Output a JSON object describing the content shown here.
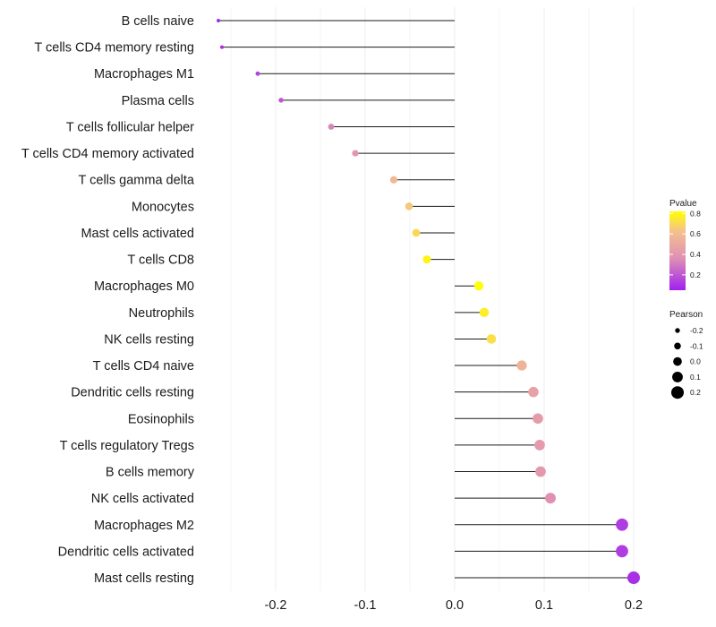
{
  "chart_data": {
    "type": "lollipop",
    "title": "",
    "xlabel": "",
    "ylabel": "",
    "xlim": [
      -0.3,
      0.2
    ],
    "x_ticks": [
      {
        "value": -0.2,
        "label": "-0.2"
      },
      {
        "value": -0.1,
        "label": "-0.1"
      },
      {
        "value": 0.0,
        "label": "0.0"
      },
      {
        "value": 0.1,
        "label": "0.1"
      },
      {
        "value": 0.2,
        "label": "0.2"
      }
    ],
    "grid": true,
    "baseline": 0,
    "categories": [
      {
        "label": "B cells naive",
        "pearson": -0.264,
        "pvalue": 0.08
      },
      {
        "label": "T cells CD4 memory resting",
        "pearson": -0.26,
        "pvalue": 0.09
      },
      {
        "label": "Macrophages M1",
        "pearson": -0.22,
        "pvalue": 0.15
      },
      {
        "label": "Plasma cells",
        "pearson": -0.194,
        "pvalue": 0.2
      },
      {
        "label": "T cells follicular helper",
        "pearson": -0.138,
        "pvalue": 0.33
      },
      {
        "label": "T cells CD4 memory activated",
        "pearson": -0.111,
        "pvalue": 0.4
      },
      {
        "label": "T cells gamma delta",
        "pearson": -0.068,
        "pvalue": 0.58
      },
      {
        "label": "Monocytes",
        "pearson": -0.051,
        "pvalue": 0.65
      },
      {
        "label": "Mast cells activated",
        "pearson": -0.043,
        "pvalue": 0.7
      },
      {
        "label": "T cells CD8",
        "pearson": -0.031,
        "pvalue": 0.79
      },
      {
        "label": "Macrophages M0",
        "pearson": 0.027,
        "pvalue": 0.82
      },
      {
        "label": "Neutrophils",
        "pearson": 0.033,
        "pvalue": 0.77
      },
      {
        "label": "NK cells resting",
        "pearson": 0.041,
        "pvalue": 0.72
      },
      {
        "label": "T cells CD4 naive",
        "pearson": 0.075,
        "pvalue": 0.55
      },
      {
        "label": "Dendritic cells resting",
        "pearson": 0.088,
        "pvalue": 0.46
      },
      {
        "label": "Eosinophils",
        "pearson": 0.093,
        "pvalue": 0.43
      },
      {
        "label": "T cells regulatory  Tregs ",
        "pearson": 0.095,
        "pvalue": 0.42
      },
      {
        "label": "B cells memory",
        "pearson": 0.096,
        "pvalue": 0.41
      },
      {
        "label": "NK cells activated",
        "pearson": 0.107,
        "pvalue": 0.37
      },
      {
        "label": "Macrophages M2",
        "pearson": 0.187,
        "pvalue": 0.13
      },
      {
        "label": "Dendritic cells activated",
        "pearson": 0.187,
        "pvalue": 0.13
      },
      {
        "label": "Mast cells resting",
        "pearson": 0.2,
        "pvalue": 0.09
      }
    ],
    "legend_pvalue": {
      "title": "Pvalue",
      "range": [
        0.05,
        0.82
      ],
      "ticks": [
        {
          "value": 0.8,
          "label": "0.8"
        },
        {
          "value": 0.6,
          "label": "0.6"
        },
        {
          "value": 0.4,
          "label": "0.4"
        },
        {
          "value": 0.2,
          "label": "0.2"
        }
      ],
      "colors": [
        "#a020f0",
        "#df8fb5",
        "#f5c18d",
        "#ffff00"
      ]
    },
    "legend_pearson": {
      "title": "Pearson",
      "placement": "right",
      "items": [
        {
          "value": -0.2,
          "label": "-0.2"
        },
        {
          "value": -0.1,
          "label": "-0.1"
        },
        {
          "value": 0.0,
          "label": "0.0"
        },
        {
          "value": 0.1,
          "label": "0.1"
        },
        {
          "value": 0.2,
          "label": "0.2"
        }
      ]
    }
  }
}
